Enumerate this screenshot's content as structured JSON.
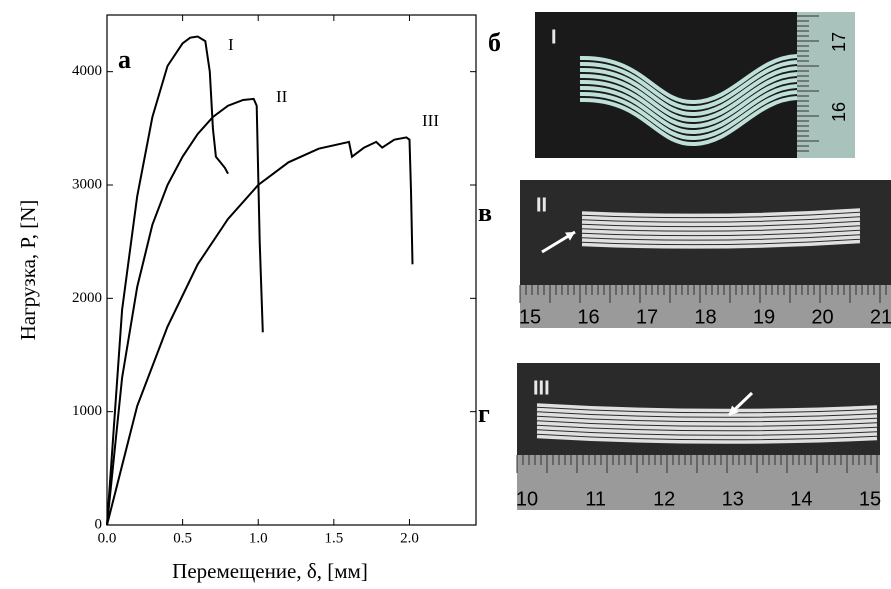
{
  "chart_data": {
    "type": "line",
    "panel_label": "а",
    "xlabel": "Перемещение, δ, [мм]",
    "ylabel": "Нагрузка, P, [N]",
    "xlim": [
      0,
      2.44
    ],
    "ylim": [
      0,
      4500
    ],
    "xticks": [
      {
        "value": 0,
        "label": "0.0"
      },
      {
        "value": 0.5,
        "label": "0.5"
      },
      {
        "value": 1,
        "label": "1.0"
      },
      {
        "value": 1.5,
        "label": "1.5"
      },
      {
        "value": 2,
        "label": "2.0"
      }
    ],
    "yticks": [
      0,
      1000,
      2000,
      3000,
      4000
    ],
    "series": [
      {
        "name": "I",
        "color": "#000000",
        "x": [
          0,
          0.1,
          0.2,
          0.3,
          0.4,
          0.5,
          0.55,
          0.6,
          0.65,
          0.68,
          0.7,
          0.72,
          0.75,
          0.78,
          0.8
        ],
        "values": [
          0,
          1900,
          2900,
          3600,
          4050,
          4250,
          4300,
          4310,
          4270,
          4000,
          3500,
          3250,
          3200,
          3150,
          3100
        ]
      },
      {
        "name": "II",
        "color": "#000000",
        "x": [
          0,
          0.1,
          0.2,
          0.3,
          0.4,
          0.5,
          0.6,
          0.7,
          0.8,
          0.9,
          0.97,
          0.99,
          1.01,
          1.03
        ],
        "values": [
          0,
          1300,
          2100,
          2650,
          3000,
          3250,
          3450,
          3600,
          3700,
          3750,
          3760,
          3700,
          2500,
          1700
        ]
      },
      {
        "name": "III",
        "color": "#000000",
        "x": [
          0,
          0.2,
          0.4,
          0.6,
          0.8,
          1.0,
          1.2,
          1.4,
          1.6,
          1.62,
          1.7,
          1.78,
          1.82,
          1.9,
          1.98,
          2.0,
          2.01,
          2.02
        ],
        "values": [
          0,
          1050,
          1750,
          2300,
          2700,
          3000,
          3200,
          3320,
          3380,
          3250,
          3330,
          3380,
          3330,
          3400,
          3420,
          3400,
          2950,
          2300
        ]
      }
    ]
  },
  "photos": [
    {
      "label": "б",
      "specimen": "I",
      "scale": [
        "17",
        "16"
      ]
    },
    {
      "label": "в",
      "specimen": "II",
      "scale": [
        "15",
        "16",
        "17",
        "18",
        "19",
        "20",
        "21"
      ]
    },
    {
      "label": "г",
      "specimen": "III",
      "scale": [
        "10",
        "11",
        "12",
        "13",
        "14",
        "15"
      ]
    }
  ]
}
